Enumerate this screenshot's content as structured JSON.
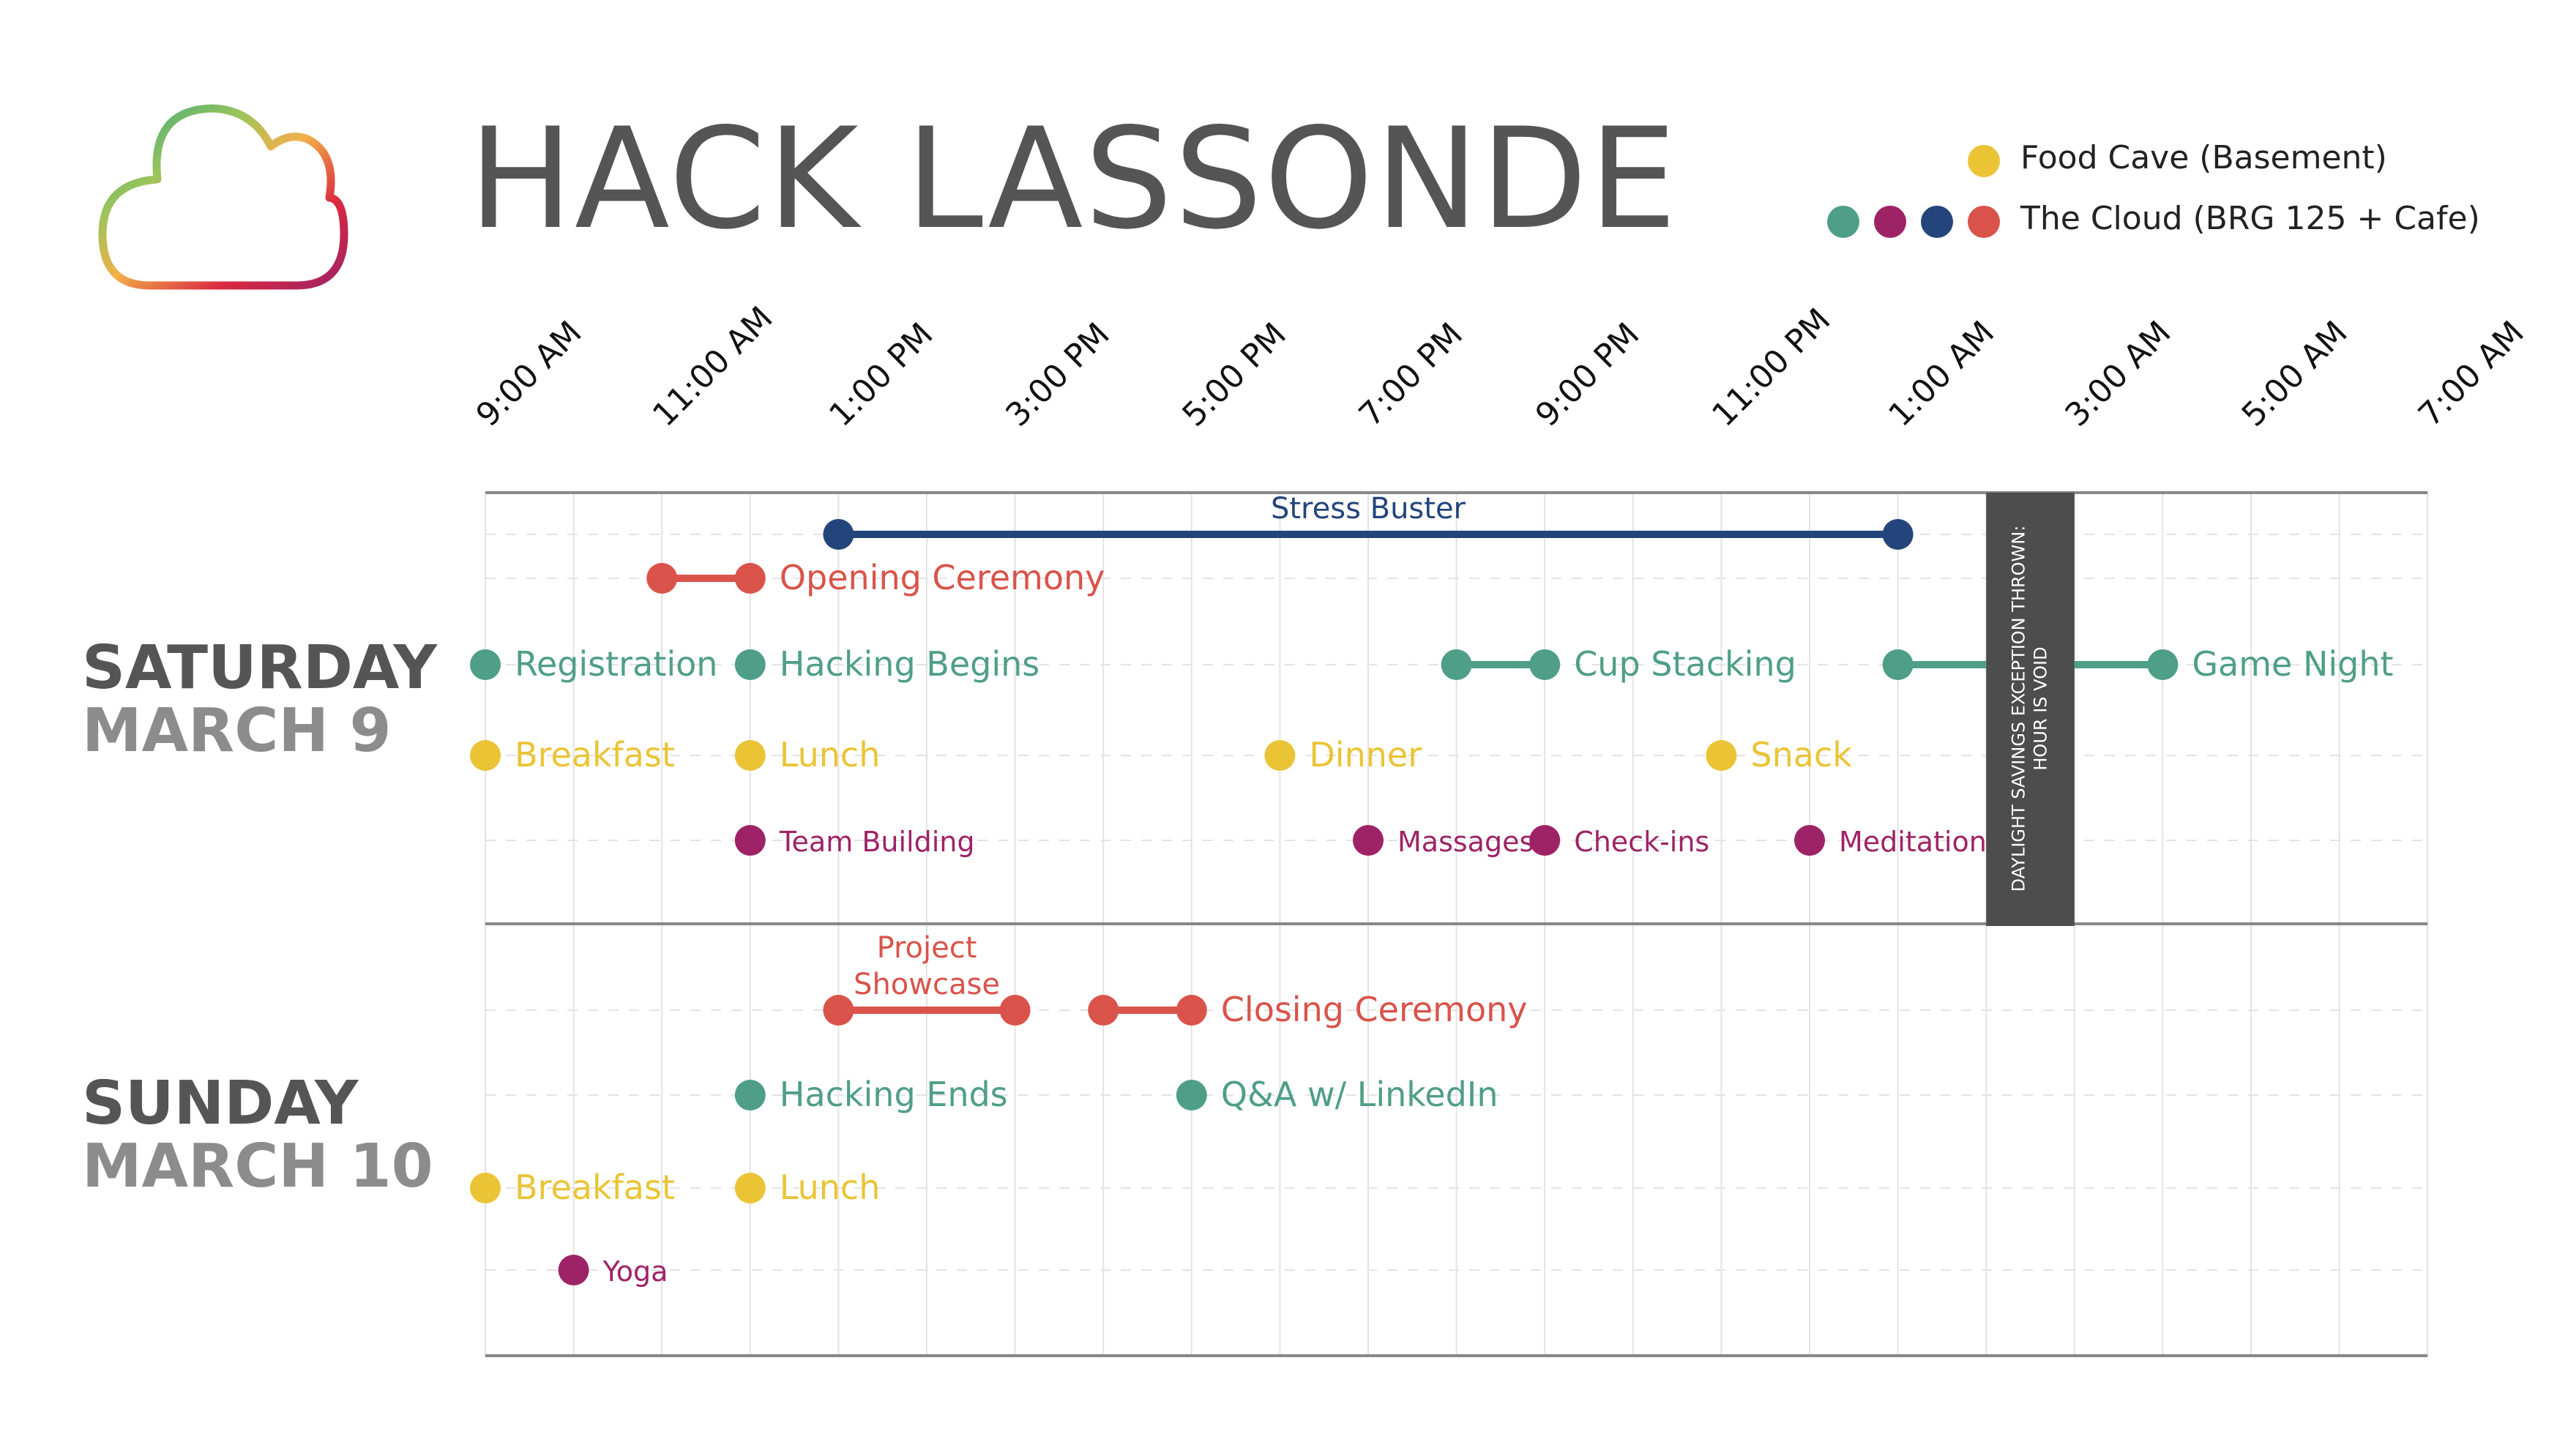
{
  "title": "HACK LASSONDE",
  "colors": {
    "food": "#EAC435",
    "teal": "#4F9E88",
    "magenta": "#9E2366",
    "navy": "#24457B",
    "red": "#D9534A",
    "gray_text": "#555555",
    "light_gray_text": "#8C8C8C",
    "grid": "#E3E3E3",
    "axis": "#888888",
    "dst_bar": "#4D4D4D"
  },
  "legend": [
    {
      "label": "Food Cave (Basement)",
      "dots": [
        "food"
      ]
    },
    {
      "label": "The Cloud (BRG 125 + Cafe)",
      "dots": [
        "teal",
        "magenta",
        "navy",
        "red"
      ]
    }
  ],
  "time_labels": [
    "9:00 AM",
    "11:00 AM",
    "1:00 PM",
    "3:00 PM",
    "5:00 PM",
    "7:00 PM",
    "9:00 PM",
    "11:00 PM",
    "1:00 AM",
    "3:00 AM",
    "5:00 AM",
    "7:00 AM"
  ],
  "days": [
    {
      "name": "SATURDAY",
      "date": "MARCH 9",
      "events": [
        {
          "label": "Stress Buster",
          "start": 13,
          "end": 25,
          "row": 0,
          "color": "navy",
          "label_pos": "above"
        },
        {
          "label": "Opening Ceremony",
          "start": 11,
          "end": 12,
          "row": 1,
          "color": "red"
        },
        {
          "label": "Registration",
          "start": 9,
          "row": 2,
          "color": "teal"
        },
        {
          "label": "Hacking Begins",
          "start": 12,
          "row": 2,
          "color": "teal"
        },
        {
          "label": "Cup Stacking",
          "start": 20,
          "end": 21,
          "row": 2,
          "color": "teal"
        },
        {
          "label": "Game Night",
          "start": 25,
          "end": 28,
          "row": 2,
          "color": "teal"
        },
        {
          "label": "Breakfast",
          "start": 9,
          "row": 3,
          "color": "food"
        },
        {
          "label": "Lunch",
          "start": 12,
          "row": 3,
          "color": "food"
        },
        {
          "label": "Dinner",
          "start": 18,
          "row": 3,
          "color": "food"
        },
        {
          "label": "Snack",
          "start": 23,
          "row": 3,
          "color": "food"
        },
        {
          "label": "Team Building",
          "start": 12,
          "row": 4,
          "color": "magenta"
        },
        {
          "label": "Massages",
          "start": 19,
          "row": 4,
          "color": "magenta"
        },
        {
          "label": "Check-ins",
          "start": 21,
          "row": 4,
          "color": "magenta"
        },
        {
          "label": "Meditation",
          "start": 24,
          "row": 4,
          "color": "magenta"
        }
      ]
    },
    {
      "name": "SUNDAY",
      "date": "MARCH 10",
      "events": [
        {
          "label": "Project Showcase",
          "label_lines": [
            "Project",
            "Showcase"
          ],
          "start": 13,
          "end": 15,
          "row": 0,
          "color": "red",
          "label_pos": "above"
        },
        {
          "label": "Closing Ceremony",
          "start": 16,
          "end": 17,
          "row": 0,
          "color": "red"
        },
        {
          "label": "Hacking Ends",
          "start": 12,
          "row": 1,
          "color": "teal"
        },
        {
          "label": "Q&A w/ LinkedIn",
          "start": 17,
          "row": 1,
          "color": "teal"
        },
        {
          "label": "Breakfast",
          "start": 9,
          "row": 2,
          "color": "food"
        },
        {
          "label": "Lunch",
          "start": 12,
          "row": 2,
          "color": "food"
        },
        {
          "label": "Yoga",
          "start": 10,
          "row": 3,
          "color": "magenta"
        }
      ]
    }
  ],
  "dst_notice": {
    "lines": [
      "DAYLIGHT SAVINGS EXCEPTION THROWN:",
      "HOUR IS VOID"
    ],
    "start": 26,
    "end": 27
  }
}
